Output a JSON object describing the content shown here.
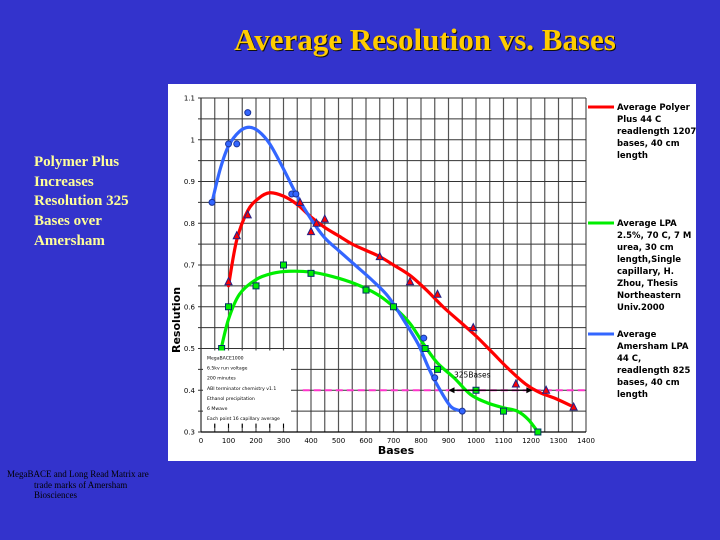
{
  "slide": {
    "title": "Average Resolution vs. Bases",
    "side_text": [
      "Polymer Plus",
      "Increases",
      "Resolution 325",
      "Bases over",
      "Amersham"
    ],
    "footnote": [
      "MegaBACE and Long Read Matrix are",
      "trade marks of Amersham",
      "Biosciences"
    ],
    "colors": {
      "background": "#3333cc",
      "title": "#ffcc00",
      "side_text": "#ffff99"
    }
  },
  "chart_data": {
    "type": "scatter",
    "title": "",
    "xlabel": "Bases",
    "ylabel": "Resolution",
    "xlim": [
      0,
      1400
    ],
    "ylim": [
      0.3,
      1.1
    ],
    "x_ticks": [
      "0",
      "100",
      "200",
      "300",
      "400",
      "500",
      "600",
      "700",
      "800",
      "900",
      "1000",
      "1100",
      "1200",
      "1300",
      "1400"
    ],
    "y_ticks": [
      "0.3",
      "0.4",
      "0.5",
      "0.6",
      "0.7",
      "0.8",
      "0.9",
      "1",
      "1.1"
    ],
    "grid": true,
    "legend_position": "right",
    "series": [
      {
        "name": "Average Polyer Plus 44 C readlength 1207 bases, 40 cm length",
        "legend_lines": [
          "Average Polyer",
          "Plus 44 C",
          "readlength 1207",
          "bases, 40 cm",
          "length"
        ],
        "color": "#ff0000",
        "marker": "triangle",
        "points": [
          [
            100,
            0.66
          ],
          [
            130,
            0.77
          ],
          [
            170,
            0.82
          ],
          [
            360,
            0.85
          ],
          [
            400,
            0.78
          ],
          [
            420,
            0.8
          ],
          [
            450,
            0.81
          ],
          [
            650,
            0.72
          ],
          [
            760,
            0.66
          ],
          [
            860,
            0.63
          ],
          [
            990,
            0.55
          ],
          [
            1145,
            0.415
          ],
          [
            1255,
            0.4
          ],
          [
            1355,
            0.36
          ]
        ],
        "trend": [
          [
            100,
            0.65
          ],
          [
            130,
            0.76
          ],
          [
            170,
            0.83
          ],
          [
            210,
            0.86
          ],
          [
            250,
            0.873
          ],
          [
            300,
            0.865
          ],
          [
            350,
            0.845
          ],
          [
            400,
            0.815
          ],
          [
            450,
            0.79
          ],
          [
            500,
            0.77
          ],
          [
            550,
            0.75
          ],
          [
            600,
            0.735
          ],
          [
            650,
            0.72
          ],
          [
            700,
            0.7
          ],
          [
            760,
            0.675
          ],
          [
            820,
            0.64
          ],
          [
            880,
            0.6
          ],
          [
            940,
            0.565
          ],
          [
            1000,
            0.53
          ],
          [
            1060,
            0.49
          ],
          [
            1120,
            0.45
          ],
          [
            1180,
            0.415
          ],
          [
            1230,
            0.395
          ],
          [
            1290,
            0.38
          ],
          [
            1355,
            0.36
          ]
        ]
      },
      {
        "name": "Average LPA 2.5%, 70 C, 7 M urea, 30 cm length,Single capillary, H. Zhou, Thesis Northeastern Univ.2000",
        "legend_lines": [
          "Average LPA",
          "2.5%, 70 C, 7 M",
          "urea, 30 cm",
          "length,Single",
          "capillary, H.",
          "Zhou, Thesis",
          "Northeastern",
          "Univ.2000"
        ],
        "color": "#00ee00",
        "marker": "square",
        "points": [
          [
            75,
            0.5
          ],
          [
            100,
            0.6
          ],
          [
            200,
            0.65
          ],
          [
            300,
            0.7
          ],
          [
            400,
            0.68
          ],
          [
            600,
            0.64
          ],
          [
            700,
            0.6
          ],
          [
            815,
            0.5
          ],
          [
            860,
            0.45
          ],
          [
            1000,
            0.4
          ],
          [
            1100,
            0.35
          ],
          [
            1225,
            0.3
          ]
        ],
        "trend": [
          [
            70,
            0.49
          ],
          [
            100,
            0.57
          ],
          [
            140,
            0.63
          ],
          [
            200,
            0.665
          ],
          [
            260,
            0.68
          ],
          [
            320,
            0.685
          ],
          [
            400,
            0.683
          ],
          [
            480,
            0.672
          ],
          [
            560,
            0.655
          ],
          [
            640,
            0.63
          ],
          [
            700,
            0.6
          ],
          [
            760,
            0.56
          ],
          [
            810,
            0.51
          ],
          [
            860,
            0.465
          ],
          [
            920,
            0.43
          ],
          [
            980,
            0.39
          ],
          [
            1040,
            0.37
          ],
          [
            1100,
            0.358
          ],
          [
            1150,
            0.35
          ],
          [
            1190,
            0.33
          ],
          [
            1225,
            0.3
          ]
        ]
      },
      {
        "name": "Average Amersham LPA 44 C, readlength 825 bases, 40 cm length",
        "legend_lines": [
          "Average",
          "Amersham LPA",
          "44 C,",
          "readlength 825",
          "bases, 40 cm",
          "length"
        ],
        "color": "#3366ff",
        "marker": "circle",
        "points": [
          [
            40,
            0.85
          ],
          [
            100,
            0.99
          ],
          [
            130,
            0.99
          ],
          [
            170,
            1.065
          ],
          [
            330,
            0.87
          ],
          [
            345,
            0.87
          ],
          [
            810,
            0.525
          ],
          [
            850,
            0.43
          ],
          [
            950,
            0.35
          ]
        ],
        "trend": [
          [
            40,
            0.85
          ],
          [
            70,
            0.93
          ],
          [
            100,
            0.985
          ],
          [
            140,
            1.02
          ],
          [
            175,
            1.03
          ],
          [
            210,
            1.02
          ],
          [
            250,
            0.99
          ],
          [
            300,
            0.93
          ],
          [
            350,
            0.865
          ],
          [
            400,
            0.81
          ],
          [
            450,
            0.765
          ],
          [
            500,
            0.735
          ],
          [
            560,
            0.7
          ],
          [
            620,
            0.665
          ],
          [
            680,
            0.625
          ],
          [
            740,
            0.565
          ],
          [
            790,
            0.51
          ],
          [
            830,
            0.45
          ],
          [
            870,
            0.4
          ],
          [
            910,
            0.36
          ],
          [
            950,
            0.35
          ]
        ]
      }
    ],
    "reference_line": {
      "y": 0.4,
      "color": "#ff33cc",
      "style": "dashed",
      "x_from": 370,
      "x_to": 1400
    },
    "annotation": {
      "text": "325Bases",
      "arrow_from": 900,
      "arrow_to": 1205,
      "y": 0.4
    },
    "notes_box": [
      "MegaBACE1000",
      "6.5kv run voltage",
      "200 minutes",
      "ABI terminator chemistry v1.1",
      "Ethanol precipitation",
      "6 Mwave",
      "Each point 16 capillary average"
    ]
  }
}
